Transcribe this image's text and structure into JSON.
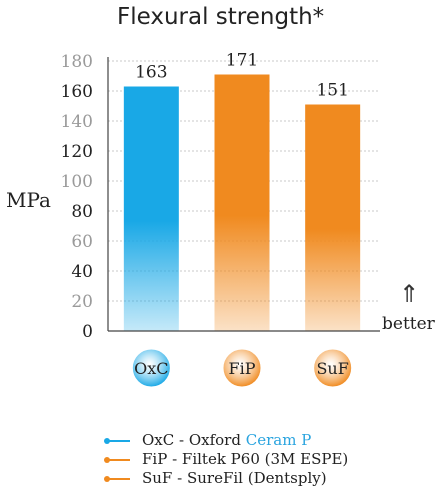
{
  "colors": {
    "oxc": "#19a8e6",
    "orange": "#f08a1f",
    "accent_text": "#2aa4df",
    "axis": "#444444",
    "tick_light": "#9a9a9a"
  },
  "arrow_glyph": "⇑",
  "better_label": "better",
  "chart_data": {
    "type": "bar",
    "title": "Flexural strength*",
    "ylabel": "MPa",
    "ylim": [
      0,
      180
    ],
    "yticks": [
      "0",
      "20",
      "40",
      "60",
      "80",
      "100",
      "120",
      "140",
      "160",
      "180"
    ],
    "categories": [
      "OxC",
      "FiP",
      "SuF"
    ],
    "values": [
      163,
      171,
      151
    ],
    "data_labels": [
      "163",
      "171",
      "151"
    ],
    "bar_colors": [
      "#19a8e6",
      "#f08a1f",
      "#f08a1f"
    ]
  },
  "legend": [
    {
      "code": "OxC",
      "sep": " - ",
      "name": "Oxford ",
      "accent": "Ceram P",
      "color": "#19a8e6"
    },
    {
      "code": "FiP",
      "sep": " - ",
      "name": "Filtek P60 (3M ESPE)",
      "accent": "",
      "color": "#f08a1f"
    },
    {
      "code": "SuF",
      "sep": " - ",
      "name": "SureFil (Dentsply)",
      "accent": "",
      "color": "#f08a1f"
    }
  ]
}
